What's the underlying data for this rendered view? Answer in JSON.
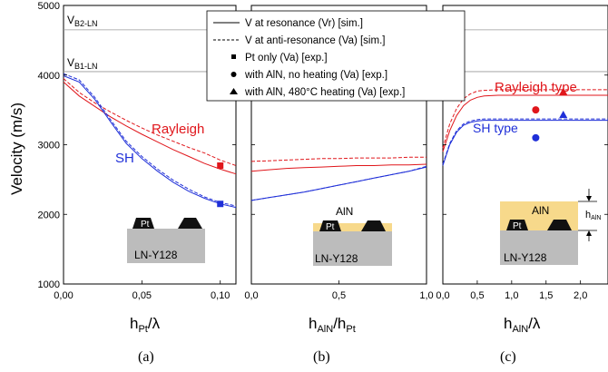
{
  "colors": {
    "red": "#e0161b",
    "blue": "#1f2fd8",
    "black": "#000000",
    "gray": "#bcbcbc",
    "yellow": "#f7d98b",
    "ref_line": "#999999"
  },
  "y_axis": {
    "label": "Velocity (m/s)",
    "ylim": [
      1000,
      5000
    ],
    "ticks": [
      "1000",
      "2000",
      "3000",
      "4000",
      "5000"
    ]
  },
  "ref_lines": [
    {
      "main": "V",
      "sub": "B2-LN",
      "value": 4650
    },
    {
      "main": "V",
      "sub": "B1-LN",
      "value": 4050
    }
  ],
  "legend": {
    "entries": [
      {
        "marker": "solid-line",
        "text": "V at resonance (Vr) [sim.]"
      },
      {
        "marker": "dashed-line",
        "text": "V at anti-resonance (Va) [sim.]"
      },
      {
        "marker": "square",
        "text": "Pt only (Va) [exp.]"
      },
      {
        "marker": "circle",
        "text": "with AlN, no heating (Va) [exp.]"
      },
      {
        "marker": "triangle",
        "text": "with AlN, 480°C heating (Va) [exp.]"
      }
    ]
  },
  "panels": {
    "a": {
      "caption": "(a)",
      "xlabel_main": "h",
      "xlabel_sub": "Pt",
      "xlabel_tail": "/λ",
      "xlim": [
        0,
        0.11
      ],
      "ticks": [
        {
          "v": 0,
          "t": "0,00"
        },
        {
          "v": 0.05,
          "t": "0,05"
        },
        {
          "v": 0.1,
          "t": "0,10"
        }
      ],
      "label_rayleigh": "Rayleigh",
      "label_sh": "SH",
      "inset_substrate": "LN-Y128",
      "inset_electrode": "Pt"
    },
    "b": {
      "caption": "(b)",
      "xlabel_main": "h",
      "xlabel_sub": "AlN",
      "xlabel_mid": "/h",
      "xlabel_sub2": "Pt",
      "xlim": [
        0,
        1
      ],
      "ticks": [
        {
          "v": 0,
          "t": "0,0"
        },
        {
          "v": 0.5,
          "t": "0,5"
        },
        {
          "v": 1,
          "t": "1,0"
        }
      ],
      "inset_substrate": "LN-Y128",
      "inset_electrode": "Pt",
      "inset_film": "AlN"
    },
    "c": {
      "caption": "(c)",
      "xlabel_main": "h",
      "xlabel_sub": "AlN",
      "xlabel_tail": "/λ",
      "xlim": [
        0,
        2.4
      ],
      "ticks": [
        {
          "v": 0,
          "t": "0,0"
        },
        {
          "v": 0.5,
          "t": "0,5"
        },
        {
          "v": 1,
          "t": "1,0"
        },
        {
          "v": 1.5,
          "t": "1,5"
        },
        {
          "v": 2,
          "t": "2,0"
        }
      ],
      "label_rayleigh": "Rayleigh type",
      "label_sh": "SH type",
      "inset_substrate": "LN-Y128",
      "inset_electrode": "Pt",
      "inset_film": "AlN",
      "inset_dim_main": "h",
      "inset_dim_sub": "AlN"
    }
  },
  "chart_data": [
    {
      "type": "line",
      "panel": "a",
      "xlabel": "hPt/λ",
      "ylabel": "Velocity (m/s)",
      "xlim": [
        0,
        0.11
      ],
      "ylim": [
        1000,
        5000
      ],
      "series": [
        {
          "name": "V at resonance (Vr) [sim.]",
          "color": "red",
          "dash": false,
          "x": [
            0,
            0.01,
            0.02,
            0.03,
            0.04,
            0.05,
            0.06,
            0.07,
            0.08,
            0.09,
            0.1,
            0.11
          ],
          "y": [
            3900,
            3700,
            3550,
            3400,
            3270,
            3150,
            3040,
            2930,
            2830,
            2730,
            2650,
            2580
          ]
        },
        {
          "name": "V at anti-resonance (Va) [sim.]",
          "color": "red",
          "dash": true,
          "x": [
            0,
            0.01,
            0.02,
            0.03,
            0.04,
            0.05,
            0.06,
            0.07,
            0.08,
            0.09,
            0.1,
            0.11
          ],
          "y": [
            3950,
            3750,
            3600,
            3470,
            3350,
            3240,
            3140,
            3050,
            2960,
            2880,
            2780,
            2700
          ]
        },
        {
          "name": "V at resonance (Vr) [sim.]",
          "color": "blue",
          "dash": false,
          "x": [
            0,
            0.01,
            0.02,
            0.03,
            0.04,
            0.05,
            0.06,
            0.07,
            0.08,
            0.09,
            0.1,
            0.11
          ],
          "y": [
            3990,
            3900,
            3650,
            3330,
            3020,
            2800,
            2620,
            2460,
            2330,
            2230,
            2150,
            2100
          ]
        },
        {
          "name": "V at anti-resonance (Va) [sim.]",
          "color": "blue",
          "dash": true,
          "x": [
            0,
            0.01,
            0.02,
            0.03,
            0.04,
            0.05,
            0.06,
            0.07,
            0.08,
            0.09,
            0.1,
            0.11
          ],
          "y": [
            4020,
            3930,
            3680,
            3360,
            3050,
            2830,
            2650,
            2490,
            2360,
            2250,
            2170,
            2120
          ]
        },
        {
          "name": "Pt only (Va) [exp.]",
          "marker": "square",
          "color": "red",
          "x": [
            0.1
          ],
          "y": [
            2700
          ]
        },
        {
          "name": "Pt only (Va) [exp.]",
          "marker": "square",
          "color": "blue",
          "x": [
            0.1
          ],
          "y": [
            2150
          ]
        }
      ]
    },
    {
      "type": "line",
      "panel": "b",
      "xlabel": "hAlN/hPt",
      "xlim": [
        0,
        1
      ],
      "ylim": [
        1000,
        5000
      ],
      "series": [
        {
          "name": "V at resonance (Vr) [sim.]",
          "color": "red",
          "dash": false,
          "x": [
            0,
            0.1,
            0.2,
            0.3,
            0.4,
            0.5,
            0.6,
            0.7,
            0.8,
            0.9,
            1
          ],
          "y": [
            2620,
            2640,
            2660,
            2670,
            2680,
            2690,
            2700,
            2700,
            2710,
            2710,
            2720
          ]
        },
        {
          "name": "V at anti-resonance (Va) [sim.]",
          "color": "red",
          "dash": true,
          "x": [
            0,
            0.1,
            0.2,
            0.3,
            0.4,
            0.5,
            0.6,
            0.7,
            0.8,
            0.9,
            1
          ],
          "y": [
            2760,
            2770,
            2780,
            2790,
            2800,
            2800,
            2810,
            2810,
            2810,
            2820,
            2820
          ]
        },
        {
          "name": "V at resonance (Vr) [sim.]",
          "color": "blue",
          "dash": false,
          "x": [
            0,
            0.1,
            0.2,
            0.3,
            0.4,
            0.5,
            0.6,
            0.7,
            0.8,
            0.9,
            1
          ],
          "y": [
            2200,
            2240,
            2280,
            2320,
            2370,
            2420,
            2470,
            2520,
            2570,
            2620,
            2680
          ]
        },
        {
          "name": "V at anti-resonance (Va) [sim.]",
          "color": "blue",
          "dash": true,
          "x": [
            0,
            0.1,
            0.2,
            0.3,
            0.4,
            0.5,
            0.6,
            0.7,
            0.8,
            0.9,
            1
          ],
          "y": [
            2200,
            2240,
            2280,
            2320,
            2370,
            2420,
            2470,
            2520,
            2570,
            2620,
            2690
          ]
        }
      ]
    },
    {
      "type": "line",
      "panel": "c",
      "xlabel": "hAlN/λ",
      "xlim": [
        0,
        2.4
      ],
      "ylim": [
        1000,
        5000
      ],
      "series": [
        {
          "name": "V at resonance (Vr) [sim.]",
          "color": "red",
          "dash": false,
          "x": [
            0,
            0.1,
            0.2,
            0.3,
            0.4,
            0.5,
            0.6,
            0.8,
            1.0,
            1.5,
            2.0,
            2.4
          ],
          "y": [
            2900,
            3200,
            3420,
            3560,
            3640,
            3680,
            3700,
            3710,
            3710,
            3710,
            3710,
            3710
          ]
        },
        {
          "name": "V at anti-resonance (Va) [sim.]",
          "color": "red",
          "dash": true,
          "x": [
            0,
            0.1,
            0.2,
            0.3,
            0.4,
            0.5,
            0.6,
            0.8,
            1.0,
            1.5,
            2.0,
            2.4
          ],
          "y": [
            2950,
            3300,
            3520,
            3660,
            3730,
            3770,
            3780,
            3790,
            3790,
            3790,
            3790,
            3790
          ]
        },
        {
          "name": "V at resonance (Vr) [sim.]",
          "color": "blue",
          "dash": false,
          "x": [
            0,
            0.1,
            0.2,
            0.3,
            0.4,
            0.5,
            0.6,
            0.8,
            1.0,
            1.5,
            2.0,
            2.4
          ],
          "y": [
            2700,
            3000,
            3180,
            3280,
            3320,
            3340,
            3350,
            3350,
            3350,
            3350,
            3350,
            3350
          ]
        },
        {
          "name": "V at anti-resonance (Va) [sim.]",
          "color": "blue",
          "dash": true,
          "x": [
            0,
            0.1,
            0.2,
            0.3,
            0.4,
            0.5,
            0.6,
            0.8,
            1.0,
            1.5,
            2.0,
            2.4
          ],
          "y": [
            2720,
            3020,
            3200,
            3300,
            3340,
            3360,
            3370,
            3370,
            3370,
            3370,
            3370,
            3370
          ]
        },
        {
          "name": "with AlN, no heating (Va) [exp.]",
          "marker": "circle",
          "color": "red",
          "x": [
            1.35
          ],
          "y": [
            3500
          ]
        },
        {
          "name": "with AlN, no heating (Va) [exp.]",
          "marker": "circle",
          "color": "blue",
          "x": [
            1.35
          ],
          "y": [
            3100
          ]
        },
        {
          "name": "with AlN, 480°C heating (Va) [exp.]",
          "marker": "triangle",
          "color": "red",
          "x": [
            1.75
          ],
          "y": [
            3760
          ]
        },
        {
          "name": "with AlN, 480°C heating (Va) [exp.]",
          "marker": "triangle",
          "color": "blue",
          "x": [
            1.75
          ],
          "y": [
            3430
          ]
        }
      ]
    }
  ]
}
